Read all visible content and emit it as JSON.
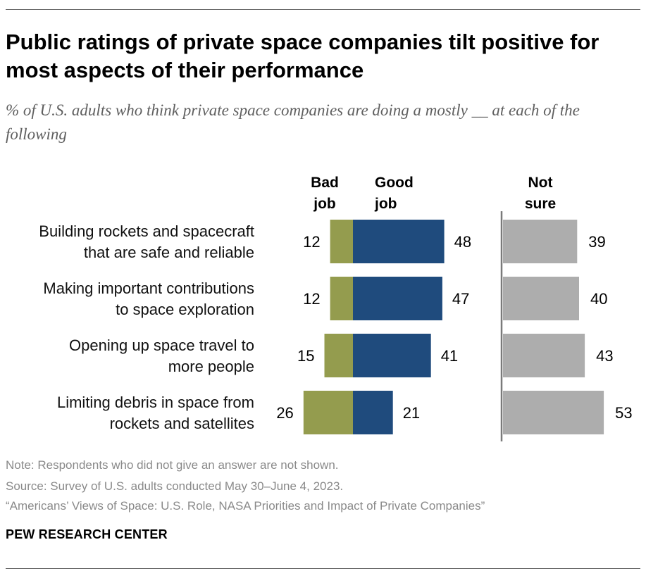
{
  "title": "Public ratings of private space companies tilt positive for most aspects of their performance",
  "subtitle": "% of U.S. adults who think private space companies are doing a mostly __ at each of the following",
  "chart_data": {
    "type": "bar",
    "orientation": "horizontal",
    "layout": "diverging-with-separate-column",
    "column_headers": [
      {
        "key": "bad",
        "lines": [
          "Bad",
          "job"
        ]
      },
      {
        "key": "good",
        "lines": [
          "Good",
          "job"
        ]
      },
      {
        "key": "not_sure",
        "lines": [
          "Not",
          "sure"
        ]
      }
    ],
    "categories": [
      {
        "lines": [
          "Building rockets and spacecraft",
          "that are safe and reliable"
        ]
      },
      {
        "lines": [
          "Making important contributions",
          "to space exploration"
        ]
      },
      {
        "lines": [
          "Opening up space travel to",
          "more people"
        ]
      },
      {
        "lines": [
          "Limiting debris in space from",
          "rockets and satellites"
        ]
      }
    ],
    "series": [
      {
        "name": "Bad job",
        "color": "#949c4e",
        "values": [
          12,
          12,
          15,
          26
        ]
      },
      {
        "name": "Good job",
        "color": "#1f4b7d",
        "values": [
          48,
          47,
          41,
          21
        ]
      },
      {
        "name": "Not sure",
        "color": "#adadad",
        "values": [
          39,
          40,
          43,
          53
        ]
      }
    ],
    "legend": "column headers above bars",
    "grid": false
  },
  "notes": {
    "note": "Note: Respondents who did not give an answer are not shown.",
    "source": "Source: Survey of U.S. adults conducted May 30–June 4, 2023.",
    "report": "“Americans’ Views of Space: U.S. Role, NASA Priorities and Impact of Private Companies”"
  },
  "brand": "PEW RESEARCH CENTER"
}
